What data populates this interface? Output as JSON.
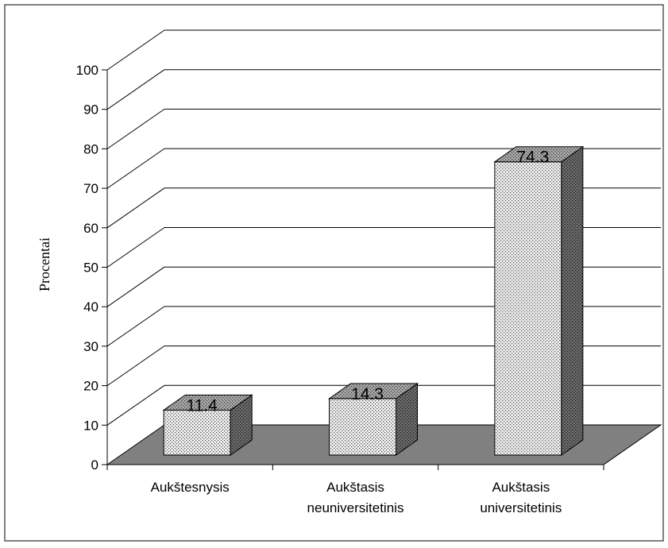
{
  "chart_data": {
    "type": "bar",
    "title": "",
    "ylabel": "Procentai",
    "xlabel": "",
    "ylim": [
      0,
      100
    ],
    "yticks": [
      0,
      10,
      20,
      30,
      40,
      50,
      60,
      70,
      80,
      90,
      100
    ],
    "grid": true,
    "three_d": true,
    "legend": "none",
    "categories": [
      [
        "Aukštesnysis"
      ],
      [
        "Aukštasis",
        "neuniversitetinis"
      ],
      [
        "Aukštasis",
        "universitetinis"
      ]
    ],
    "values": [
      11.4,
      14.3,
      74.3
    ],
    "data_labels": [
      "11.4",
      "14.3",
      "74.3"
    ],
    "colors": {
      "floor": "#808080",
      "bar_front": "#f2f2f2",
      "bar_dots": "#555555",
      "bar_top": "#a8a8a8",
      "bar_side": "#6a6a6a"
    }
  }
}
